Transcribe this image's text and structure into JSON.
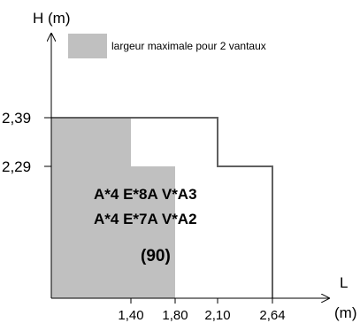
{
  "chart_data": {
    "type": "area",
    "ylabel": "H (m)",
    "xlabel": "L",
    "xunit": "(m)",
    "x_ticks": [
      "1,40",
      "1,80",
      "2,10",
      "2,64"
    ],
    "y_ticks": [
      "2,39",
      "2,29"
    ],
    "xlim": [
      0,
      2.64
    ],
    "ylim": [
      0,
      2.39
    ],
    "legend": {
      "label": "largeur maximale pour 2 vantaux",
      "placement": "top"
    },
    "series": [
      {
        "name": "largeur maximale pour 2 vantaux",
        "kind": "filled",
        "color": "#c0c0c0",
        "points": [
          [
            0,
            2.39
          ],
          [
            1.4,
            2.39
          ],
          [
            1.4,
            2.29
          ],
          [
            1.8,
            2.29
          ],
          [
            1.8,
            0
          ]
        ]
      },
      {
        "kind": "outline",
        "color": "#606060",
        "points": [
          [
            0,
            2.39
          ],
          [
            2.1,
            2.39
          ],
          [
            2.1,
            2.29
          ],
          [
            2.64,
            2.29
          ],
          [
            2.64,
            0
          ]
        ]
      }
    ],
    "annotations": [
      "A*4  E*8A V*A3",
      "A*4  E*7A V*A2",
      "(90)"
    ]
  }
}
